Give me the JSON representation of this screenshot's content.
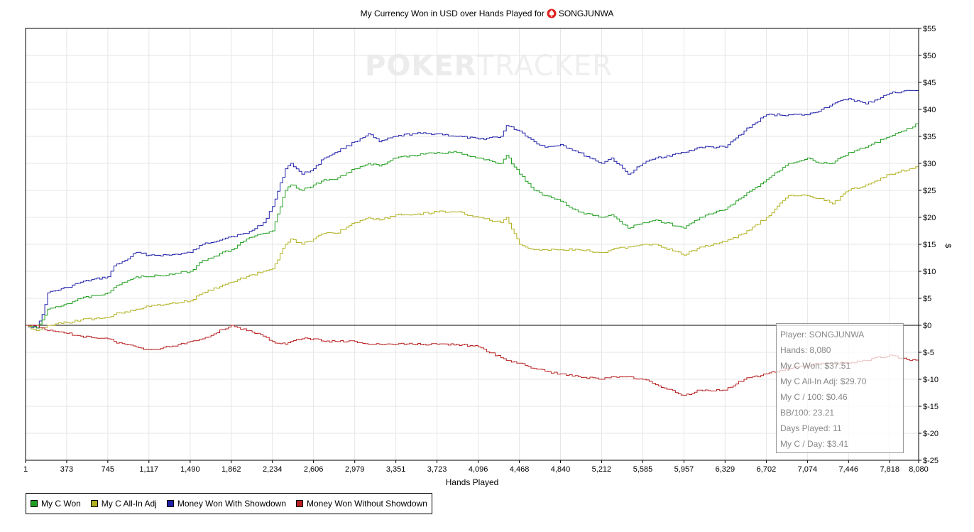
{
  "chart_data": {
    "type": "line",
    "title": "My Currency Won in USD over Hands Played for",
    "player_name": "SONGJUNWA",
    "xlabel": "Hands Played",
    "ylabel": "$",
    "xlim": [
      1,
      8080
    ],
    "ylim": [
      -25,
      55
    ],
    "x_ticks": [
      1,
      373,
      745,
      1117,
      1490,
      1862,
      2234,
      2606,
      2979,
      3351,
      3723,
      4096,
      4468,
      4840,
      5212,
      5585,
      5957,
      6329,
      6702,
      7074,
      7446,
      7818,
      8080
    ],
    "x_tick_labels": [
      "1",
      "373",
      "745",
      "1,117",
      "1,490",
      "1,862",
      "2,234",
      "2,606",
      "2,979",
      "3,351",
      "3,723",
      "4,096",
      "4,468",
      "4,840",
      "5,212",
      "5,585",
      "5,957",
      "6,329",
      "6,702",
      "7,074",
      "7,446",
      "7,818",
      "8,080"
    ],
    "y_ticks": [
      55,
      50,
      45,
      40,
      35,
      30,
      25,
      20,
      15,
      10,
      5,
      0,
      -5,
      -10,
      -15,
      -20,
      -25
    ],
    "y_tick_labels": [
      "$55",
      "$50",
      "$45",
      "$40",
      "$35",
      "$30",
      "$25",
      "$20",
      "$15",
      "$10",
      "$5",
      "$0",
      "$-5",
      "$-10",
      "$-15",
      "$-20",
      "$-25"
    ],
    "grid": true,
    "legend_position": "bottom-left",
    "series": [
      {
        "name": "Money Won With Showdown",
        "color": "#1f1fa8",
        "x": [
          1,
          100,
          150,
          200,
          373,
          500,
          745,
          800,
          900,
          1000,
          1117,
          1300,
          1490,
          1600,
          1862,
          2000,
          2150,
          2234,
          2350,
          2400,
          2500,
          2606,
          2700,
          2800,
          2979,
          3100,
          3200,
          3351,
          3500,
          3723,
          3900,
          4096,
          4300,
          4350,
          4468,
          4600,
          4700,
          4840,
          5000,
          5212,
          5300,
          5450,
          5585,
          5700,
          5957,
          6100,
          6329,
          6500,
          6702,
          6900,
          7074,
          7200,
          7300,
          7446,
          7600,
          7818,
          8000,
          8080
        ],
        "y": [
          0,
          -0.5,
          2,
          6,
          7,
          8,
          9,
          11,
          12,
          13.5,
          13,
          13,
          13.5,
          15,
          16.5,
          17,
          19,
          22,
          29,
          30,
          28,
          29,
          31,
          32,
          34,
          35.5,
          34,
          35,
          35.5,
          35.5,
          35,
          34.5,
          35,
          37,
          36,
          34,
          33,
          33.5,
          32,
          30,
          31,
          28,
          30,
          31,
          32,
          33,
          33,
          36,
          39,
          39,
          39,
          40,
          41,
          42,
          41,
          43,
          43.5,
          43.5
        ]
      },
      {
        "name": "My C Won",
        "color": "#1f9e1f",
        "x": [
          1,
          100,
          150,
          200,
          373,
          500,
          745,
          800,
          900,
          1000,
          1117,
          1300,
          1490,
          1600,
          1862,
          2000,
          2150,
          2234,
          2350,
          2400,
          2500,
          2606,
          2700,
          2800,
          2979,
          3100,
          3200,
          3351,
          3500,
          3723,
          3900,
          4096,
          4300,
          4350,
          4468,
          4600,
          4700,
          4840,
          5000,
          5212,
          5300,
          5450,
          5585,
          5700,
          5957,
          6100,
          6329,
          6500,
          6702,
          6900,
          7074,
          7200,
          7300,
          7446,
          7600,
          7818,
          8000,
          8080
        ],
        "y": [
          0,
          -0.5,
          1,
          3,
          4,
          5,
          6,
          7,
          8,
          9,
          9,
          9.5,
          10,
          12,
          14,
          16,
          17,
          17.5,
          25,
          26,
          25,
          26,
          27,
          27,
          29,
          30,
          29.5,
          31,
          31.5,
          32,
          32,
          31,
          30,
          31.5,
          28,
          25,
          24,
          23,
          21,
          20,
          20.5,
          18,
          19,
          19.5,
          18,
          20,
          21.5,
          24,
          27,
          30,
          31,
          30,
          30,
          32,
          33,
          35,
          36.5,
          37.5
        ]
      },
      {
        "name": "My C All-In Adj",
        "color": "#b0b020",
        "x": [
          1,
          100,
          150,
          200,
          373,
          500,
          745,
          800,
          900,
          1000,
          1117,
          1300,
          1490,
          1600,
          1862,
          2000,
          2150,
          2234,
          2350,
          2400,
          2500,
          2606,
          2700,
          2800,
          2979,
          3100,
          3200,
          3351,
          3500,
          3723,
          3900,
          4096,
          4300,
          4350,
          4468,
          4600,
          4700,
          4840,
          5000,
          5212,
          5300,
          5450,
          5585,
          5700,
          5957,
          6100,
          6329,
          6500,
          6702,
          6900,
          7074,
          7200,
          7300,
          7446,
          7600,
          7818,
          8000,
          8080
        ],
        "y": [
          0,
          -1,
          -0.5,
          0,
          0.5,
          1,
          1.5,
          2,
          2.5,
          3,
          3.5,
          4,
          4.5,
          6,
          8,
          9,
          10,
          10.5,
          15,
          16,
          15,
          16,
          17,
          17,
          19,
          20,
          19.5,
          20.5,
          20.5,
          21,
          21,
          20,
          19,
          20,
          15,
          14,
          14,
          14,
          14,
          13.5,
          14,
          14.5,
          15,
          15,
          13,
          14.5,
          15.5,
          17,
          20,
          24,
          24,
          23.5,
          22.5,
          25,
          26,
          28,
          29,
          29.7
        ]
      },
      {
        "name": "Money Won Without Showdown",
        "color": "#b82020",
        "x": [
          1,
          100,
          150,
          200,
          373,
          500,
          745,
          800,
          900,
          1000,
          1117,
          1300,
          1490,
          1600,
          1862,
          2000,
          2150,
          2234,
          2350,
          2400,
          2500,
          2606,
          2700,
          2800,
          2979,
          3100,
          3200,
          3351,
          3500,
          3723,
          3900,
          4096,
          4300,
          4350,
          4468,
          4600,
          4700,
          4840,
          5000,
          5212,
          5300,
          5450,
          5585,
          5700,
          5957,
          6100,
          6329,
          6500,
          6702,
          6900,
          7074,
          7200,
          7300,
          7446,
          7600,
          7818,
          8000,
          8080
        ],
        "y": [
          0,
          0,
          -0.5,
          -1,
          -1.5,
          -2,
          -2.5,
          -3,
          -3.5,
          -4,
          -4.5,
          -4,
          -3,
          -2.5,
          0,
          -1,
          -2,
          -3,
          -3.5,
          -3,
          -2.5,
          -2.5,
          -3,
          -3,
          -3,
          -3.5,
          -3.5,
          -3.5,
          -3.5,
          -3.5,
          -3.5,
          -4,
          -6,
          -6.5,
          -7,
          -8,
          -8.5,
          -9,
          -9.5,
          -10,
          -9.5,
          -9.5,
          -10,
          -11,
          -13,
          -12,
          -12,
          -10,
          -9,
          -8,
          -7.5,
          -7,
          -7,
          -7,
          -6.5,
          -5.5,
          -6.5,
          -6.5
        ]
      }
    ]
  },
  "legend": [
    {
      "label": "My C Won",
      "color": "#1f9e1f"
    },
    {
      "label": "My C All-In Adj",
      "color": "#b0b020"
    },
    {
      "label": "Money Won With Showdown",
      "color": "#1f1fa8"
    },
    {
      "label": "Money Won Without Showdown",
      "color": "#b82020"
    }
  ],
  "watermark": {
    "bold": "POKER",
    "light": "TRACKER"
  },
  "tooltip": {
    "lines": [
      "Player: SONGJUNWA",
      "Hands: 8,080",
      "My C Won: $37.51",
      "My C All-In Adj: $29.70",
      "My C / 100: $0.46",
      "BB/100: 23.21",
      "Days Played: 11",
      "My C / Day: $3.41"
    ]
  }
}
